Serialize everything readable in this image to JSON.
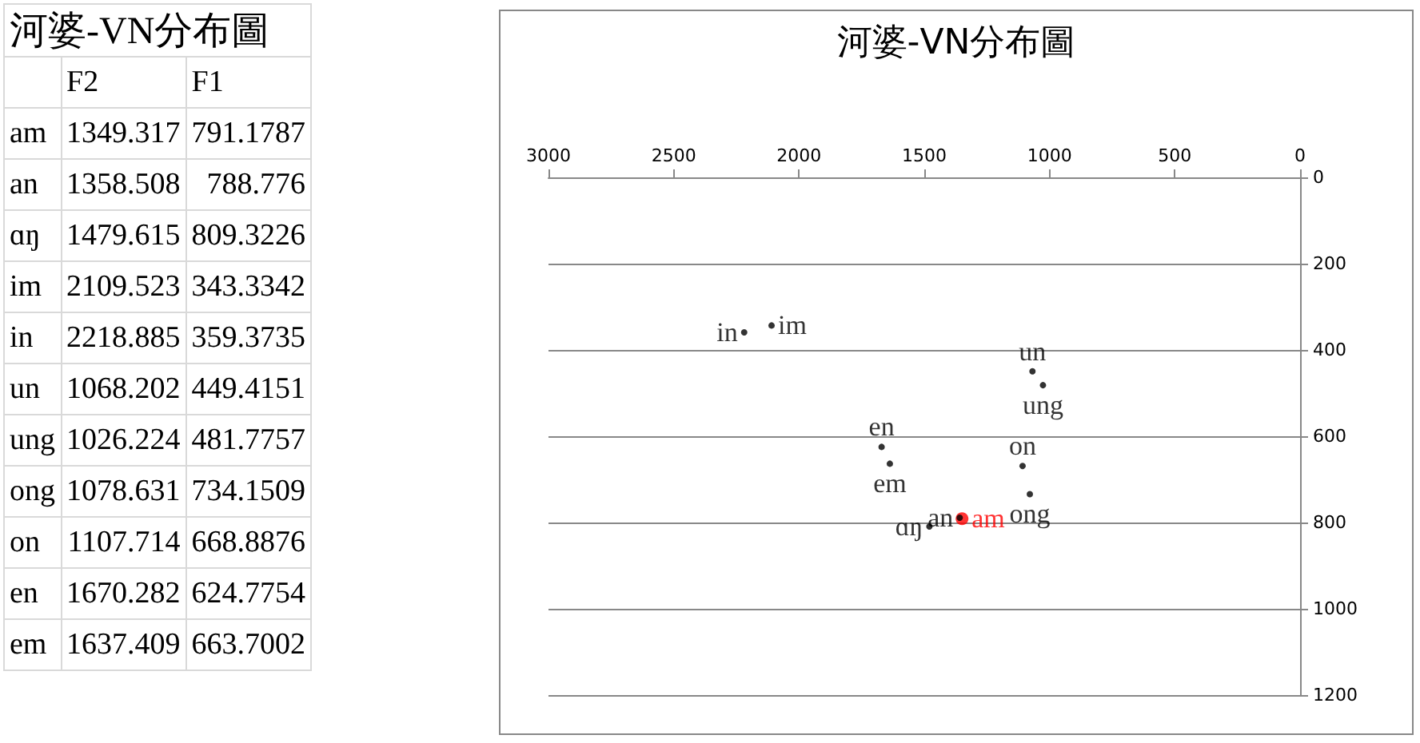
{
  "chart_data": [
    {
      "type": "other",
      "title": "河婆-VN分布圖",
      "categories": [
        "am",
        "an",
        "ɑŋ",
        "im",
        "in",
        "un",
        "ung",
        "ong",
        "on",
        "en",
        "em"
      ],
      "data_labels": true,
      "series": [
        {
          "name": "F2",
          "values": [
            1349.317,
            1358.508,
            1479.615,
            2109.523,
            2218.885,
            1068.202,
            1026.224,
            1078.631,
            1107.714,
            1670.282,
            1637.409
          ]
        },
        {
          "name": "F1",
          "values": [
            791.1787,
            788.776,
            809.3226,
            343.3342,
            359.3735,
            449.4151,
            481.7757,
            734.1509,
            668.8876,
            624.7754,
            663.7002
          ]
        }
      ]
    },
    {
      "type": "scatter",
      "title": "河婆-VN分布圖",
      "xlim": [
        3000,
        0
      ],
      "xticks": [
        3000,
        2500,
        2000,
        1500,
        1000,
        500,
        0
      ],
      "ylim": [
        1200,
        0
      ],
      "yticks": [
        0,
        200,
        400,
        600,
        800,
        1000,
        1200
      ],
      "grid": "y",
      "legend": false,
      "series": [
        {
          "name": "am",
          "color": "#ff0000",
          "x": [
            1349.317
          ],
          "values": [
            791.1787
          ]
        },
        {
          "name": "an",
          "color": "#000000",
          "x": [
            1358.508
          ],
          "values": [
            788.776
          ]
        },
        {
          "name": "ɑŋ",
          "color": "#000000",
          "x": [
            1479.615
          ],
          "values": [
            809.3226
          ]
        },
        {
          "name": "im",
          "color": "#000000",
          "x": [
            2109.523
          ],
          "values": [
            343.3342
          ]
        },
        {
          "name": "in",
          "color": "#000000",
          "x": [
            2218.885
          ],
          "values": [
            359.3735
          ]
        },
        {
          "name": "un",
          "color": "#000000",
          "x": [
            1068.202
          ],
          "values": [
            449.4151
          ]
        },
        {
          "name": "ung",
          "color": "#000000",
          "x": [
            1026.224
          ],
          "values": [
            481.7757
          ]
        },
        {
          "name": "ong",
          "color": "#000000",
          "x": [
            1078.631
          ],
          "values": [
            734.1509
          ]
        },
        {
          "name": "on",
          "color": "#000000",
          "x": [
            1107.714
          ],
          "values": [
            668.8876
          ]
        },
        {
          "name": "en",
          "color": "#000000",
          "x": [
            1670.282
          ],
          "values": [
            624.7754
          ]
        },
        {
          "name": "em",
          "color": "#000000",
          "x": [
            1637.409
          ],
          "values": [
            663.7002
          ]
        }
      ]
    }
  ]
}
